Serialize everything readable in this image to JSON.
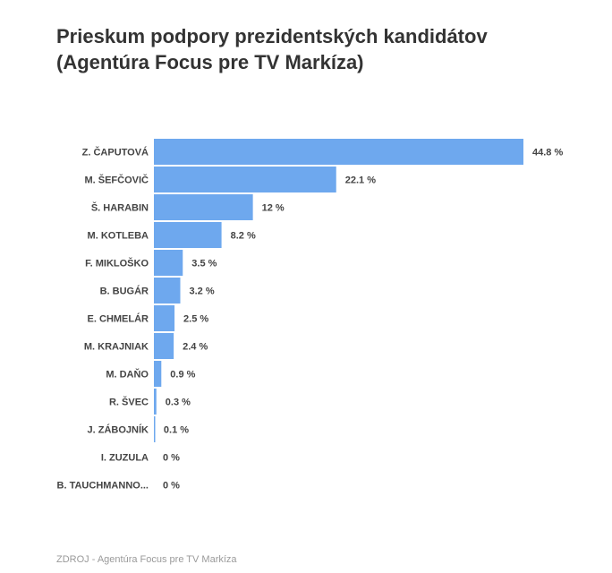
{
  "title_line1": "Prieskum podpory prezidentských kandidátov",
  "title_line2": "(Agentúra Focus pre TV Markíza)",
  "source": "ZDROJ - Agentúra Focus pre TV Markíza",
  "colors": {
    "bar": "#6ea8ee",
    "text": "#444444",
    "title": "#333333"
  },
  "chart_data": {
    "type": "bar",
    "orientation": "horizontal",
    "categories": [
      "Z. ČAPUTOVÁ",
      "M. ŠEFČOVIČ",
      "Š. HARABIN",
      "M. KOTLEBA",
      "F. MIKLOŠKO",
      "B. BUGÁR",
      "E. CHMELÁR",
      "M. KRAJNIAK",
      "M. DAŇO",
      "R. ŠVEC",
      "J. ZÁBOJNÍK",
      "I. ZUZULA",
      "B. TAUCHMANNO..."
    ],
    "values": [
      44.8,
      22.1,
      12,
      8.2,
      3.5,
      3.2,
      2.5,
      2.4,
      0.9,
      0.3,
      0.1,
      0,
      0
    ],
    "value_labels": [
      "44.8 %",
      "22.1 %",
      "12 %",
      "8.2 %",
      "3.5 %",
      "3.2 %",
      "2.5 %",
      "2.4 %",
      "0.9 %",
      "0.3 %",
      "0.1 %",
      "0 %",
      "0 %"
    ],
    "xlim": [
      0,
      44.8
    ],
    "grid": false
  }
}
